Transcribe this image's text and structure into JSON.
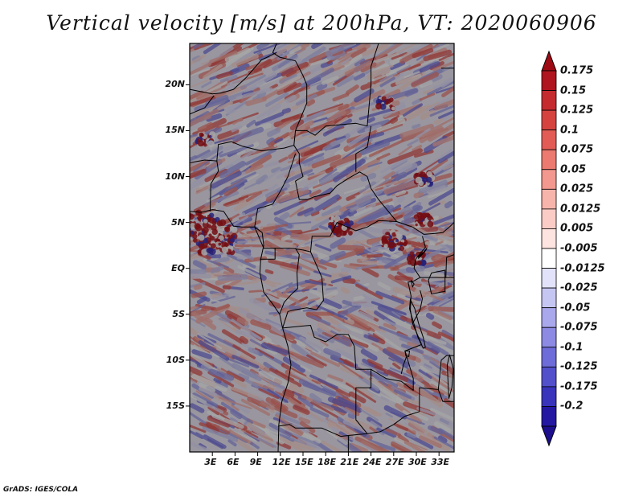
{
  "title": "Vertical velocity [m/s] at 200hPa, VT: 2020060906",
  "variable": "Vertical velocity",
  "units": "m/s",
  "level": "200hPa",
  "valid_time": "2020060906",
  "credit": "GrADS: IGES/COLA",
  "map": {
    "lon_range": [
      0,
      35
    ],
    "lat_range": [
      -20,
      24.5
    ],
    "lat_labels": [
      {
        "lat": 20,
        "label": "20N"
      },
      {
        "lat": 15,
        "label": "15N"
      },
      {
        "lat": 10,
        "label": "10N"
      },
      {
        "lat": 5,
        "label": "5N"
      },
      {
        "lat": 0,
        "label": "EQ"
      },
      {
        "lat": -5,
        "label": "5S"
      },
      {
        "lat": -10,
        "label": "10S"
      },
      {
        "lat": -15,
        "label": "15S"
      }
    ],
    "lon_labels": [
      {
        "lon": 3,
        "label": "3E"
      },
      {
        "lon": 6,
        "label": "6E"
      },
      {
        "lon": 9,
        "label": "9E"
      },
      {
        "lon": 12,
        "label": "12E"
      },
      {
        "lon": 15,
        "label": "15E"
      },
      {
        "lon": 18,
        "label": "18E"
      },
      {
        "lon": 21,
        "label": "21E"
      },
      {
        "lon": 24,
        "label": "24E"
      },
      {
        "lon": 27,
        "label": "27E"
      },
      {
        "lon": 30,
        "label": "30E"
      },
      {
        "lon": 33,
        "label": "33E"
      }
    ]
  },
  "colorbar": {
    "levels": [
      {
        "label": "0.175",
        "color": "#b0141e"
      },
      {
        "label": "0.15",
        "color": "#c52a2f"
      },
      {
        "label": "0.125",
        "color": "#d6433f"
      },
      {
        "label": "0.1",
        "color": "#e25c55"
      },
      {
        "label": "0.075",
        "color": "#ec7a70"
      },
      {
        "label": "0.05",
        "color": "#f2988e"
      },
      {
        "label": "0.025",
        "color": "#f7b4ab"
      },
      {
        "label": "0.0125",
        "color": "#fbccc6"
      },
      {
        "label": "0.005",
        "color": "#fde4e0"
      },
      {
        "label": "-0.005",
        "color": "#ffffff"
      },
      {
        "label": "-0.0125",
        "color": "#e2e2fa"
      },
      {
        "label": "-0.025",
        "color": "#c6c6f3"
      },
      {
        "label": "-0.05",
        "color": "#a9a8ec"
      },
      {
        "label": "-0.075",
        "color": "#8c8ae3"
      },
      {
        "label": "-0.1",
        "color": "#6e6cd8"
      },
      {
        "label": "-0.125",
        "color": "#5350cc"
      },
      {
        "label": "-0.175",
        "color": "#3934bb"
      },
      {
        "label": "-0.2",
        "color": "#2418a3"
      }
    ],
    "top_color": "#9e0a14",
    "bottom_color": "#1c0e8c"
  },
  "colors": {
    "positive_strong": "#d63c3c",
    "positive_weak": "#f5aaa2",
    "negative_weak": "#c2c2f2",
    "negative_strong": "#6a68d8",
    "border": "#000000"
  }
}
